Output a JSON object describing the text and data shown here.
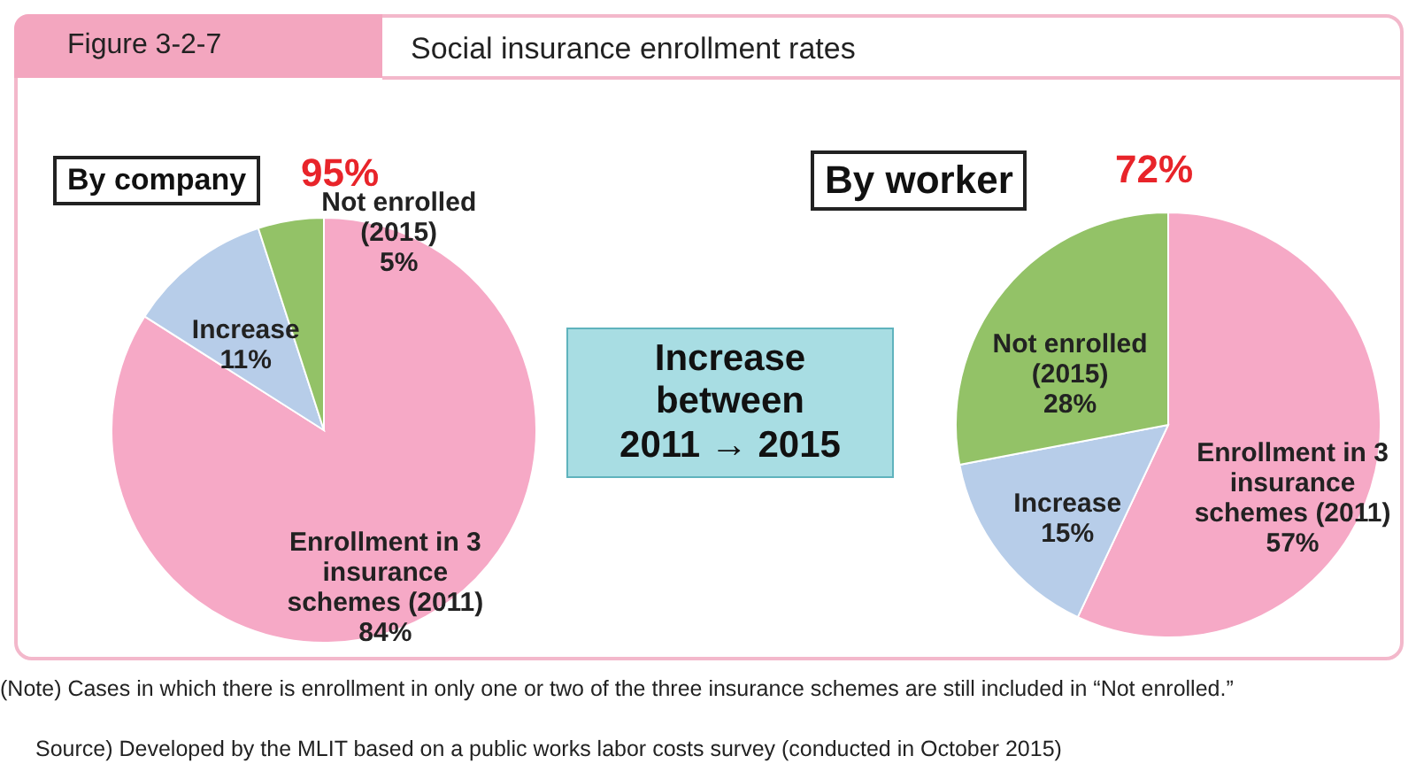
{
  "chart_data": [
    {
      "type": "other",
      "title": "Social insurance enrollment rates",
      "annotations": [
        "Figure 3-2-7",
        "Increase between 2011 → 2015",
        "(Note) Cases in which there is enrollment in only one or two of the three insurance schemes are still included in “Not enrolled.”",
        "Source) Developed by the MLIT based on a public works labor costs survey (conducted in October 2015)"
      ]
    },
    {
      "type": "pie",
      "title": "By company",
      "annotations": [
        "95%"
      ],
      "categories": [
        "Enrollment in 3 insurance schemes (2011)",
        "Increase",
        "Not enrolled (2015)"
      ],
      "values": [
        84,
        11,
        5
      ],
      "value_labels": [
        "84%",
        "11%",
        "5%"
      ],
      "colors": [
        "#f6a9c6",
        "#b7cde9",
        "#93c267"
      ]
    },
    {
      "type": "pie",
      "title": "By worker",
      "annotations": [
        "72%"
      ],
      "categories": [
        "Enrollment in 3 insurance schemes (2011)",
        "Increase",
        "Not enrolled (2015)"
      ],
      "values": [
        57,
        15,
        28
      ],
      "value_labels": [
        "57%",
        "15%",
        "28%"
      ],
      "colors": [
        "#f6a9c6",
        "#b7cde9",
        "#93c267"
      ]
    }
  ]
}
